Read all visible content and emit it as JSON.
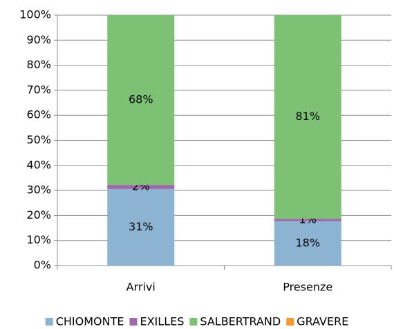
{
  "chart_data": {
    "type": "stacked_bar_percent",
    "categories": [
      "Arrivi",
      "Presenze"
    ],
    "series": [
      {
        "name": "CHIOMONTE",
        "color": "#8cb4d2",
        "values": [
          30.6,
          17.7
        ],
        "value_labels": [
          "31%",
          "18%"
        ]
      },
      {
        "name": "EXILLES",
        "color": "#9e6aa8",
        "values": [
          1.6,
          1.0
        ],
        "value_labels": [
          "2%",
          "1%"
        ]
      },
      {
        "name": "SALBERTRAND",
        "color": "#7dc274",
        "values": [
          67.8,
          81.3
        ],
        "value_labels": [
          "68%",
          "81%"
        ]
      },
      {
        "name": "GRAVERE",
        "color": "#f79a2e",
        "values": [
          0,
          0
        ]
      }
    ],
    "ylim": [
      0,
      100
    ],
    "yticks": [
      {
        "value": 0,
        "label": "0%"
      },
      {
        "value": 10,
        "label": "10%"
      },
      {
        "value": 20,
        "label": "20%"
      },
      {
        "value": 30,
        "label": "30%"
      },
      {
        "value": 40,
        "label": "40%"
      },
      {
        "value": 50,
        "label": "50%"
      },
      {
        "value": 60,
        "label": "60%"
      },
      {
        "value": 70,
        "label": "70%"
      },
      {
        "value": 80,
        "label": "80%"
      },
      {
        "value": 90,
        "label": "90%"
      },
      {
        "value": 100,
        "label": "100%"
      }
    ],
    "grid": true,
    "legend": "bottom"
  }
}
